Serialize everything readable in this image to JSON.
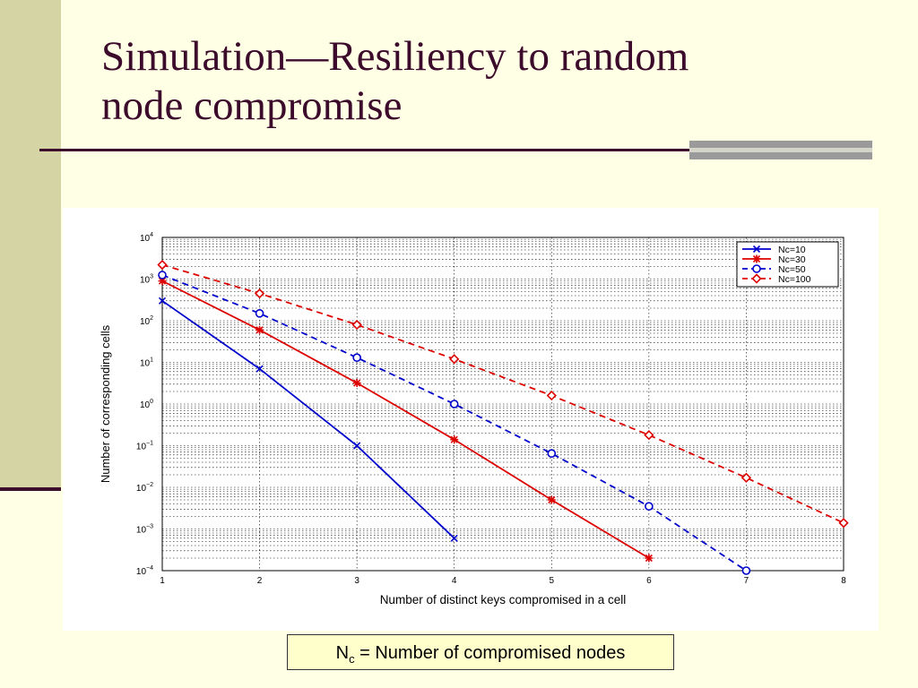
{
  "slide": {
    "title_line1": "Simulation—Resiliency to random",
    "title_line2": "node compromise",
    "caption_prefix": "N",
    "caption_sub": "c",
    "caption_rest": " = Number of compromised nodes"
  },
  "colors": {
    "title": "#3c0a2a",
    "blue": "#0000cc",
    "red": "#dd0000",
    "accent_bar": "#d4d4a4"
  },
  "chart_data": {
    "type": "line",
    "xlabel": "Number of distinct keys compromised in a cell",
    "ylabel": "Number of corresponding cells",
    "x_ticks": [
      1,
      2,
      3,
      4,
      5,
      6,
      7,
      8
    ],
    "y_scale": "log",
    "y_tick_exponents": [
      4,
      3,
      2,
      1,
      0,
      -1,
      -2,
      -3,
      -4
    ],
    "xlim": [
      1,
      8
    ],
    "ylim": [
      0.0001,
      10000
    ],
    "grid": true,
    "legend_position": "top-right",
    "series": [
      {
        "name": "Nc=10",
        "color": "#0000cc",
        "dash": "solid",
        "marker": "x",
        "x": [
          1,
          2,
          3,
          4
        ],
        "y": [
          300,
          7,
          0.1,
          0.0006
        ]
      },
      {
        "name": "Nc=30",
        "color": "#dd0000",
        "dash": "solid",
        "marker": "star",
        "x": [
          1,
          2,
          3,
          4,
          5,
          6
        ],
        "y": [
          900,
          60,
          3.2,
          0.14,
          0.005,
          0.0002
        ]
      },
      {
        "name": "Nc=50",
        "color": "#0000cc",
        "dash": "dashed",
        "marker": "circle",
        "x": [
          1,
          2,
          3,
          4,
          5,
          6,
          7
        ],
        "y": [
          1250,
          150,
          13,
          1,
          0.065,
          0.0035,
          0.0001
        ]
      },
      {
        "name": "Nc=100",
        "color": "#dd0000",
        "dash": "dashed",
        "marker": "diamond",
        "x": [
          1,
          2,
          3,
          4,
          5,
          6,
          7,
          8
        ],
        "y": [
          2200,
          450,
          80,
          12,
          1.6,
          0.18,
          0.017,
          0.0014
        ]
      }
    ]
  }
}
